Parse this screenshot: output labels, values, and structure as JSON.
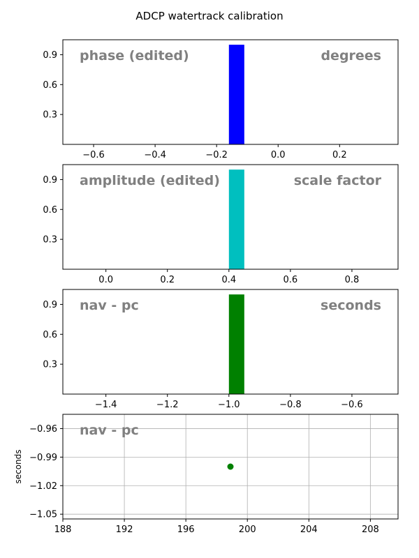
{
  "chart_data": {
    "title": "ADCP watertrack calibration",
    "panels": [
      {
        "type": "bar",
        "annotation_left": "phase (edited)",
        "annotation_right": "degrees",
        "bar_color": "#0000ff",
        "bars": [
          {
            "x0": -0.16,
            "x1": -0.11,
            "value": 1.0
          }
        ],
        "xlim": [
          -0.7,
          0.39
        ],
        "ylim": [
          0,
          1.05
        ],
        "xticks": [
          -0.6,
          -0.4,
          -0.2,
          0.0,
          0.2
        ],
        "xtick_labels": [
          "−0.6",
          "−0.4",
          "−0.2",
          "0.0",
          "0.2"
        ],
        "yticks": [
          0.3,
          0.6,
          0.9
        ],
        "ytick_labels": [
          "0.3",
          "0.6",
          "0.9"
        ],
        "grid": false
      },
      {
        "type": "bar",
        "annotation_left": "amplitude (edited)",
        "annotation_right": "scale factor",
        "bar_color": "#00bfbf",
        "bars": [
          {
            "x0": 0.4,
            "x1": 0.45,
            "value": 1.0
          }
        ],
        "xlim": [
          -0.14,
          0.95
        ],
        "ylim": [
          0,
          1.05
        ],
        "xticks": [
          0.0,
          0.2,
          0.4,
          0.6,
          0.8
        ],
        "xtick_labels": [
          "0.0",
          "0.2",
          "0.4",
          "0.6",
          "0.8"
        ],
        "yticks": [
          0.3,
          0.6,
          0.9
        ],
        "ytick_labels": [
          "0.3",
          "0.6",
          "0.9"
        ],
        "grid": false
      },
      {
        "type": "bar",
        "annotation_left": "nav - pc",
        "annotation_right": "seconds",
        "bar_color": "#008000",
        "bars": [
          {
            "x0": -1.0,
            "x1": -0.95,
            "value": 1.0
          }
        ],
        "xlim": [
          -1.54,
          -0.45
        ],
        "ylim": [
          0,
          1.05
        ],
        "xticks": [
          -1.4,
          -1.2,
          -1.0,
          -0.8,
          -0.6
        ],
        "xtick_labels": [
          "−1.4",
          "−1.2",
          "−1.0",
          "−0.8",
          "−0.6"
        ],
        "yticks": [
          0.3,
          0.6,
          0.9
        ],
        "ytick_labels": [
          "0.3",
          "0.6",
          "0.9"
        ],
        "grid": false
      },
      {
        "type": "scatter",
        "annotation_left": "nav - pc",
        "ylabel": "seconds",
        "point_color": "#008000",
        "points": [
          {
            "x": 198.9,
            "y": -1.0
          }
        ],
        "xlim": [
          188,
          209.8
        ],
        "ylim": [
          -1.055,
          -0.945
        ],
        "xticks": [
          188,
          192,
          196,
          200,
          204,
          208
        ],
        "xtick_labels": [
          "188",
          "192",
          "196",
          "200",
          "204",
          "208"
        ],
        "yticks": [
          -1.05,
          -1.02,
          -0.99,
          -0.96
        ],
        "ytick_labels": [
          "−1.05",
          "−1.02",
          "−0.99",
          "−0.96"
        ],
        "grid": true
      }
    ]
  }
}
